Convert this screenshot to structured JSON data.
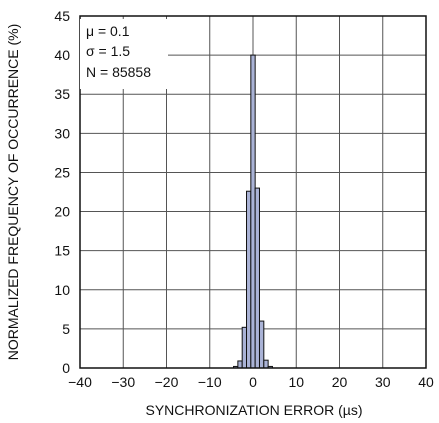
{
  "chart_data": {
    "type": "bar",
    "xlabel": "SYNCHRONIZATION ERROR (µs)",
    "ylabel": "NORMALIZED FREQUENCY OF OCCURRENCE (%)",
    "xlim": [
      -40,
      40
    ],
    "ylim": [
      0,
      45
    ],
    "xticks": [
      "−40",
      "−30",
      "−20",
      "−10",
      "0",
      "10",
      "20",
      "30",
      "40"
    ],
    "xtick_values": [
      -40,
      -30,
      -20,
      -10,
      0,
      10,
      20,
      30,
      40
    ],
    "yticks": [
      "0",
      "5",
      "10",
      "15",
      "20",
      "25",
      "30",
      "35",
      "40",
      "45"
    ],
    "ytick_values": [
      0,
      5,
      10,
      15,
      20,
      25,
      30,
      35,
      40,
      45
    ],
    "grid": true,
    "bar_color": "#aab3d6",
    "bin_width": 1,
    "bins": [
      -4,
      -3,
      -2,
      -1,
      0,
      1,
      2,
      3,
      4
    ],
    "values": [
      0.2,
      0.9,
      5.2,
      22.6,
      40.0,
      23.0,
      6.0,
      1.0,
      0.2
    ],
    "annotations": [
      "μ = 0.1",
      "σ = 1.5",
      "N = 85858"
    ]
  }
}
